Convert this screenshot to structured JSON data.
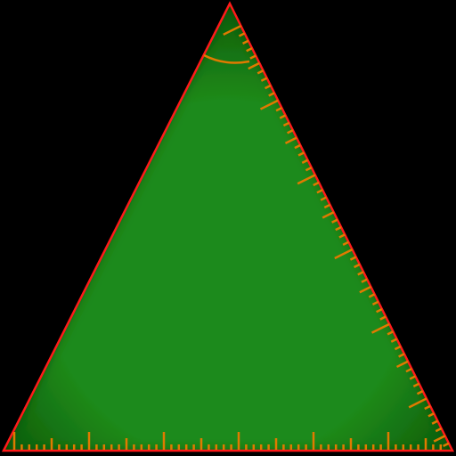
{
  "canvas": {
    "background_color": "#000000"
  },
  "triangle_ruler": {
    "icon": "triangle-ruler-icon",
    "fill_color": "#1f8a1a",
    "fill_edge_color": "#0c5c0a",
    "outline_color": "#ff1a1a",
    "tick_color": "#e07a00",
    "angle_arc_color": "#e07a00"
  }
}
